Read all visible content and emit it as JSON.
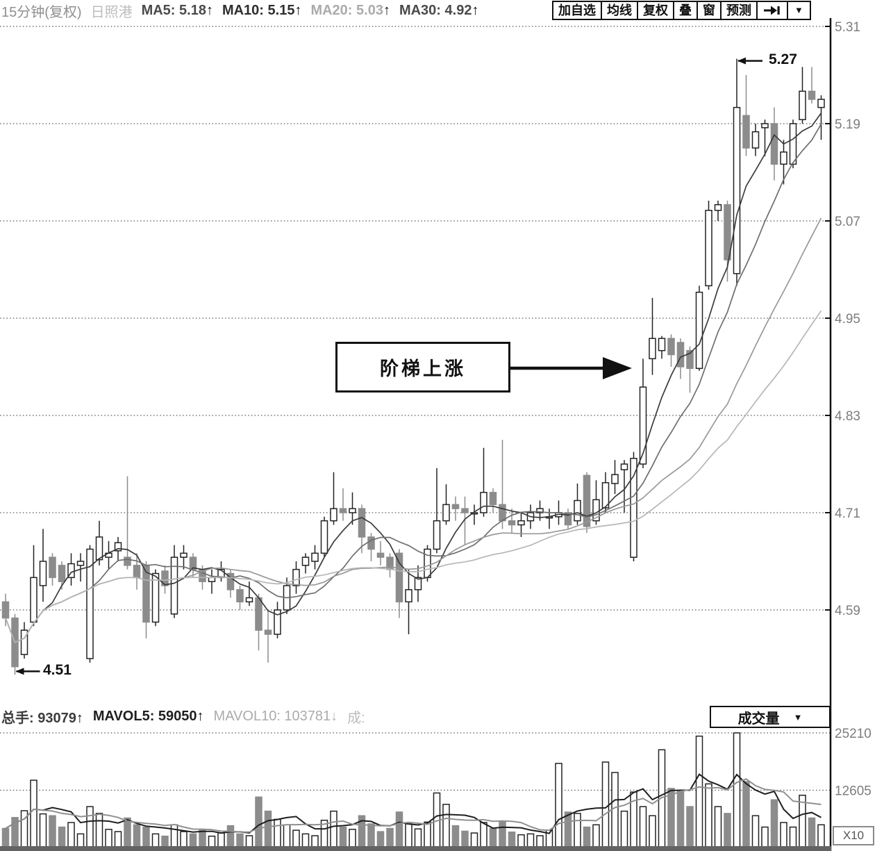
{
  "toolbar": {
    "period_label": "15分钟(复权)",
    "stock_name": "日照港",
    "ma5_label": "MA5: 5.18",
    "ma5_arrow": "↑",
    "ma10_label": "MA10: 5.15",
    "ma10_arrow": "↑",
    "ma20_label": "MA20: 5.03",
    "ma20_arrow": "↑",
    "ma30_label": "MA30: 4.92",
    "ma30_arrow": "↑",
    "buttons": [
      "加自选",
      "均线",
      "复权",
      "叠",
      "窗",
      "预测"
    ],
    "caret": "▼"
  },
  "volume_header": {
    "turnover_label": "总手: 93079",
    "turnover_arrow": "↑",
    "mavol5_label": "MAVOL5: 59050",
    "mavol5_arrow": "↑",
    "mavol10_label": "MAVOL10: 103781",
    "mavol10_arrow": "↓",
    "truncated_label": "成:",
    "selector_label": "成交量",
    "selector_caret": "▼",
    "multiplier_label": "X10"
  },
  "annotations": {
    "stair_text": "阶梯上涨",
    "high_value": "5.27",
    "low_value": "4.51",
    "high_candle_index": 78,
    "low_candle_index": 1
  },
  "chart_data": {
    "type": "candlestick+volume",
    "title": "日照港 15分钟(复权) K线图",
    "price_axis": {
      "ticks": [
        5.31,
        5.19,
        5.07,
        4.95,
        4.83,
        4.71,
        4.59
      ],
      "min": 4.47,
      "max": 5.31,
      "grid": "dotted"
    },
    "volume_axis": {
      "ticks": [
        25210,
        12605
      ],
      "max": 25210,
      "multiplier": "X10"
    },
    "ma_windows": [
      5,
      10,
      20,
      30
    ],
    "mavol_windows": [
      5,
      10
    ],
    "legend": {
      "ma5": 5.18,
      "ma10": 5.15,
      "ma20": 5.03,
      "ma30": 4.92,
      "turnover": 93079,
      "mavol5": 59050,
      "mavol10": 103781
    },
    "style": {
      "up_fill": "#ffffff",
      "up_stroke": "#222222",
      "down_fill": "#8c8c8c",
      "down_stroke": "#8c8c8c",
      "ma_colors": [
        "#3a3a3a",
        "#6e6e6e",
        "#989898",
        "#b6b6b6"
      ],
      "mavol_colors": [
        "#1e1e1e",
        "#909090"
      ],
      "grid_color": "#555555",
      "axis_color": "#111111",
      "label_color": "#7d7d7d"
    },
    "candles_format": [
      "open",
      "high",
      "low",
      "close",
      "volume"
    ],
    "candles": [
      [
        4.6,
        4.61,
        4.57,
        4.58,
        4200
      ],
      [
        4.58,
        4.585,
        4.51,
        4.52,
        6600
      ],
      [
        4.535,
        4.575,
        4.53,
        4.565,
        8100
      ],
      [
        4.575,
        4.67,
        4.57,
        4.63,
        14800
      ],
      [
        4.62,
        4.69,
        4.6,
        4.65,
        7400
      ],
      [
        4.655,
        4.66,
        4.62,
        4.63,
        7000
      ],
      [
        4.645,
        4.65,
        4.615,
        4.625,
        4500
      ],
      [
        4.63,
        4.66,
        4.62,
        4.647,
        5500
      ],
      [
        4.645,
        4.66,
        4.625,
        4.65,
        3000
      ],
      [
        4.53,
        4.67,
        4.525,
        4.665,
        9000
      ],
      [
        4.652,
        4.7,
        4.645,
        4.68,
        7500
      ],
      [
        4.655,
        4.675,
        4.64,
        4.66,
        4000
      ],
      [
        4.663,
        4.68,
        4.65,
        4.673,
        3500
      ],
      [
        4.655,
        4.755,
        4.64,
        4.645,
        6500
      ],
      [
        4.645,
        4.66,
        4.615,
        4.63,
        5000
      ],
      [
        4.645,
        4.65,
        4.555,
        4.575,
        4500
      ],
      [
        4.575,
        4.64,
        4.57,
        4.635,
        3000
      ],
      [
        4.638,
        4.645,
        4.61,
        4.62,
        2500
      ],
      [
        4.585,
        4.67,
        4.58,
        4.655,
        5000
      ],
      [
        4.655,
        4.67,
        4.64,
        4.66,
        3500
      ],
      [
        4.655,
        4.66,
        4.63,
        4.64,
        3000
      ],
      [
        4.64,
        4.645,
        4.615,
        4.625,
        3800
      ],
      [
        4.625,
        4.64,
        4.61,
        4.63,
        2500
      ],
      [
        4.63,
        4.65,
        4.625,
        4.64,
        3200
      ],
      [
        4.635,
        4.64,
        4.605,
        4.615,
        4800
      ],
      [
        4.615,
        4.62,
        4.59,
        4.6,
        3000
      ],
      [
        4.6,
        4.625,
        4.595,
        4.605,
        2600
      ],
      [
        4.605,
        4.61,
        4.54,
        4.565,
        11100
      ],
      [
        4.565,
        4.59,
        4.525,
        4.56,
        8000
      ],
      [
        4.56,
        4.6,
        4.555,
        4.59,
        6200
      ],
      [
        4.59,
        4.63,
        4.585,
        4.62,
        5000
      ],
      [
        4.62,
        4.65,
        4.61,
        4.64,
        3800
      ],
      [
        4.645,
        4.66,
        4.635,
        4.655,
        3000
      ],
      [
        4.65,
        4.67,
        4.64,
        4.66,
        2600
      ],
      [
        4.66,
        4.705,
        4.655,
        4.7,
        6000
      ],
      [
        4.7,
        4.76,
        4.695,
        4.715,
        8000
      ],
      [
        4.715,
        4.74,
        4.7,
        4.71,
        4500
      ],
      [
        4.71,
        4.735,
        4.695,
        4.715,
        4000
      ],
      [
        4.715,
        4.72,
        4.66,
        4.68,
        7000
      ],
      [
        4.68,
        4.685,
        4.65,
        4.665,
        5200
      ],
      [
        4.66,
        4.675,
        4.645,
        4.655,
        3500
      ],
      [
        4.655,
        4.66,
        4.63,
        4.64,
        4200
      ],
      [
        4.66,
        4.665,
        4.58,
        4.6,
        7800
      ],
      [
        4.6,
        4.64,
        4.56,
        4.615,
        5200
      ],
      [
        4.615,
        4.645,
        4.6,
        4.63,
        4100
      ],
      [
        4.63,
        4.67,
        4.625,
        4.665,
        5600
      ],
      [
        4.665,
        4.765,
        4.66,
        4.7,
        12000
      ],
      [
        4.7,
        4.745,
        4.695,
        4.72,
        9500
      ],
      [
        4.72,
        4.73,
        4.7,
        4.715,
        4800
      ],
      [
        4.715,
        4.73,
        4.67,
        4.71,
        3600
      ],
      [
        4.71,
        4.72,
        4.695,
        4.71,
        3200
      ],
      [
        4.71,
        4.79,
        4.705,
        4.735,
        5500
      ],
      [
        4.735,
        4.74,
        4.71,
        4.72,
        4200
      ],
      [
        4.72,
        4.8,
        4.69,
        4.7,
        5800
      ],
      [
        4.7,
        4.715,
        4.685,
        4.695,
        3400
      ],
      [
        4.695,
        4.71,
        4.68,
        4.7,
        2800
      ],
      [
        4.7,
        4.72,
        4.69,
        4.71,
        3000
      ],
      [
        4.71,
        4.725,
        4.7,
        4.715,
        2600
      ],
      [
        4.705,
        4.715,
        4.69,
        4.705,
        3800
      ],
      [
        4.705,
        4.725,
        4.695,
        4.71,
        18500
      ],
      [
        4.71,
        4.715,
        4.69,
        4.695,
        7800
      ],
      [
        4.7,
        4.746,
        4.695,
        4.725,
        7500
      ],
      [
        4.756,
        4.76,
        4.685,
        4.693,
        4500
      ],
      [
        4.7,
        4.75,
        4.695,
        4.726,
        5000
      ],
      [
        4.716,
        4.76,
        4.71,
        4.747,
        18800
      ],
      [
        4.746,
        4.775,
        4.733,
        4.757,
        16500
      ],
      [
        4.763,
        4.775,
        4.71,
        4.77,
        8000
      ],
      [
        4.655,
        4.785,
        4.65,
        4.777,
        12200
      ],
      [
        4.77,
        4.9,
        4.765,
        4.865,
        9000
      ],
      [
        4.9,
        4.975,
        4.88,
        4.925,
        7000
      ],
      [
        4.91,
        4.928,
        4.9,
        4.925,
        21500
      ],
      [
        4.925,
        4.93,
        4.89,
        4.905,
        13000
      ],
      [
        4.92,
        4.925,
        4.875,
        4.89,
        12500
      ],
      [
        4.91,
        4.915,
        4.858,
        4.888,
        9000
      ],
      [
        4.888,
        4.99,
        4.885,
        4.982,
        24500
      ],
      [
        4.99,
        5.095,
        4.985,
        5.083,
        14000
      ],
      [
        5.083,
        5.095,
        5.07,
        5.09,
        9000
      ],
      [
        5.09,
        5.095,
        4.995,
        5.022,
        7500
      ],
      [
        5.005,
        5.27,
        4.99,
        5.21,
        25210
      ],
      [
        5.2,
        5.25,
        5.15,
        5.16,
        14500
      ],
      [
        5.16,
        5.19,
        5.15,
        5.18,
        7000
      ],
      [
        5.185,
        5.195,
        5.15,
        5.19,
        4500
      ],
      [
        5.19,
        5.21,
        5.12,
        5.14,
        10500
      ],
      [
        5.14,
        5.17,
        5.115,
        5.155,
        5500
      ],
      [
        5.14,
        5.195,
        5.135,
        5.19,
        4500
      ],
      [
        5.195,
        5.26,
        5.19,
        5.23,
        11500
      ],
      [
        5.23,
        5.26,
        5.215,
        5.22,
        6500
      ],
      [
        5.21,
        5.225,
        5.17,
        5.22,
        5000
      ]
    ]
  }
}
